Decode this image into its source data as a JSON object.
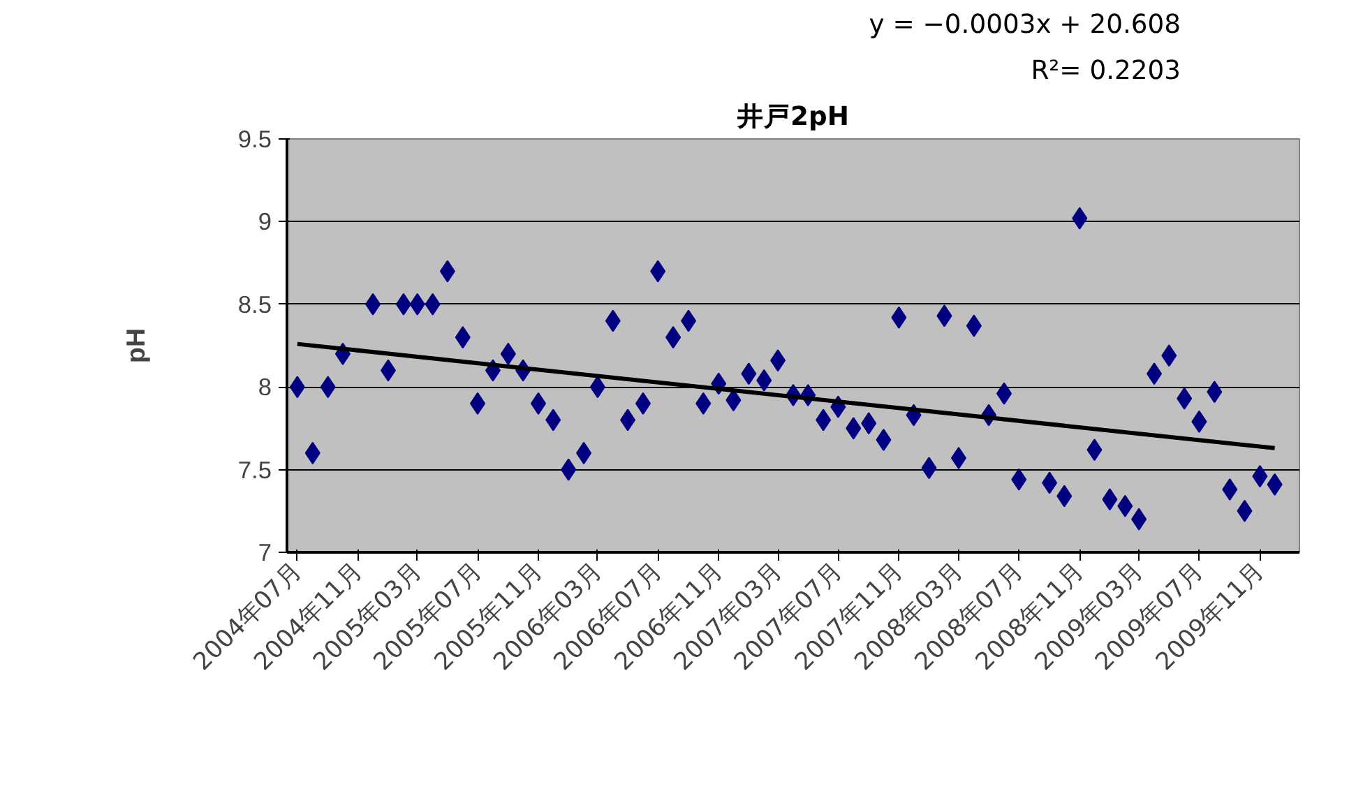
{
  "chart_data": {
    "type": "scatter",
    "title": "井戸2pH",
    "ylabel": "pH",
    "annotations": [
      "y = −0.0003x + 20.608",
      "R²= 0.2203"
    ],
    "xlim": [
      "2004-06-10",
      "2010-01-20"
    ],
    "ylim": [
      7,
      9.5
    ],
    "yticks": [
      7,
      7.5,
      8,
      8.5,
      9,
      9.5
    ],
    "xticks": [
      {
        "value": "2004-07",
        "label": "2004年07月"
      },
      {
        "value": "2004-11",
        "label": "2004年11月"
      },
      {
        "value": "2005-03",
        "label": "2005年03月"
      },
      {
        "value": "2005-07",
        "label": "2005年07月"
      },
      {
        "value": "2005-11",
        "label": "2005年11月"
      },
      {
        "value": "2006-03",
        "label": "2006年03月"
      },
      {
        "value": "2006-07",
        "label": "2006年07月"
      },
      {
        "value": "2006-11",
        "label": "2006年11月"
      },
      {
        "value": "2007-03",
        "label": "2007年03月"
      },
      {
        "value": "2007-07",
        "label": "2007年07月"
      },
      {
        "value": "2007-11",
        "label": "2007年11月"
      },
      {
        "value": "2008-03",
        "label": "2008年03月"
      },
      {
        "value": "2008-07",
        "label": "2008年07月"
      },
      {
        "value": "2008-11",
        "label": "2008年11月"
      },
      {
        "value": "2009-03",
        "label": "2009年03月"
      },
      {
        "value": "2009-07",
        "label": "2009年07月"
      },
      {
        "value": "2009-11",
        "label": "2009年11月"
      }
    ],
    "grid": "y",
    "series": [
      {
        "marker": "diamond",
        "color": "#000080",
        "x": [
          "2004-07",
          "2004-08",
          "2004-09",
          "2004-10",
          "2004-12",
          "2005-01",
          "2005-02",
          "2005-03",
          "2005-04",
          "2005-05",
          "2005-06",
          "2005-07",
          "2005-08",
          "2005-09",
          "2005-10",
          "2005-11",
          "2005-12",
          "2006-01",
          "2006-02",
          "2006-03",
          "2006-04",
          "2006-05",
          "2006-06",
          "2006-07",
          "2006-08",
          "2006-09",
          "2006-10",
          "2006-11",
          "2006-12",
          "2007-01",
          "2007-02",
          "2007-03",
          "2007-04",
          "2007-05",
          "2007-06",
          "2007-07",
          "2007-08",
          "2007-09",
          "2007-10",
          "2007-11",
          "2007-12",
          "2008-01",
          "2008-02",
          "2008-03",
          "2008-04",
          "2008-05",
          "2008-06",
          "2008-07",
          "2008-09",
          "2008-10",
          "2008-11",
          "2008-12",
          "2009-01",
          "2009-02",
          "2009-03",
          "2009-04",
          "2009-05",
          "2009-06",
          "2009-07",
          "2009-08",
          "2009-09",
          "2009-10",
          "2009-11",
          "2009-12"
        ],
        "values": [
          8.0,
          7.6,
          8.0,
          8.2,
          8.5,
          8.1,
          8.5,
          8.5,
          8.5,
          8.7,
          8.3,
          7.9,
          8.1,
          8.2,
          8.1,
          7.9,
          7.8,
          7.5,
          7.6,
          8.0,
          8.4,
          7.8,
          7.9,
          8.7,
          8.3,
          8.4,
          7.9,
          8.02,
          7.92,
          8.08,
          8.04,
          8.16,
          7.95,
          7.95,
          7.8,
          7.88,
          7.75,
          7.78,
          7.68,
          8.42,
          7.83,
          7.51,
          8.43,
          7.57,
          8.37,
          7.83,
          7.96,
          7.44,
          7.42,
          7.34,
          9.02,
          7.62,
          7.32,
          7.28,
          7.2,
          8.08,
          8.19,
          7.93,
          7.79,
          7.97,
          7.38,
          7.25,
          7.46,
          7.41
        ]
      },
      {
        "type": "line",
        "marker": "none",
        "color": "#000000",
        "x": [
          "2004-07",
          "2009-12"
        ],
        "values": [
          8.26,
          7.63
        ]
      }
    ]
  }
}
